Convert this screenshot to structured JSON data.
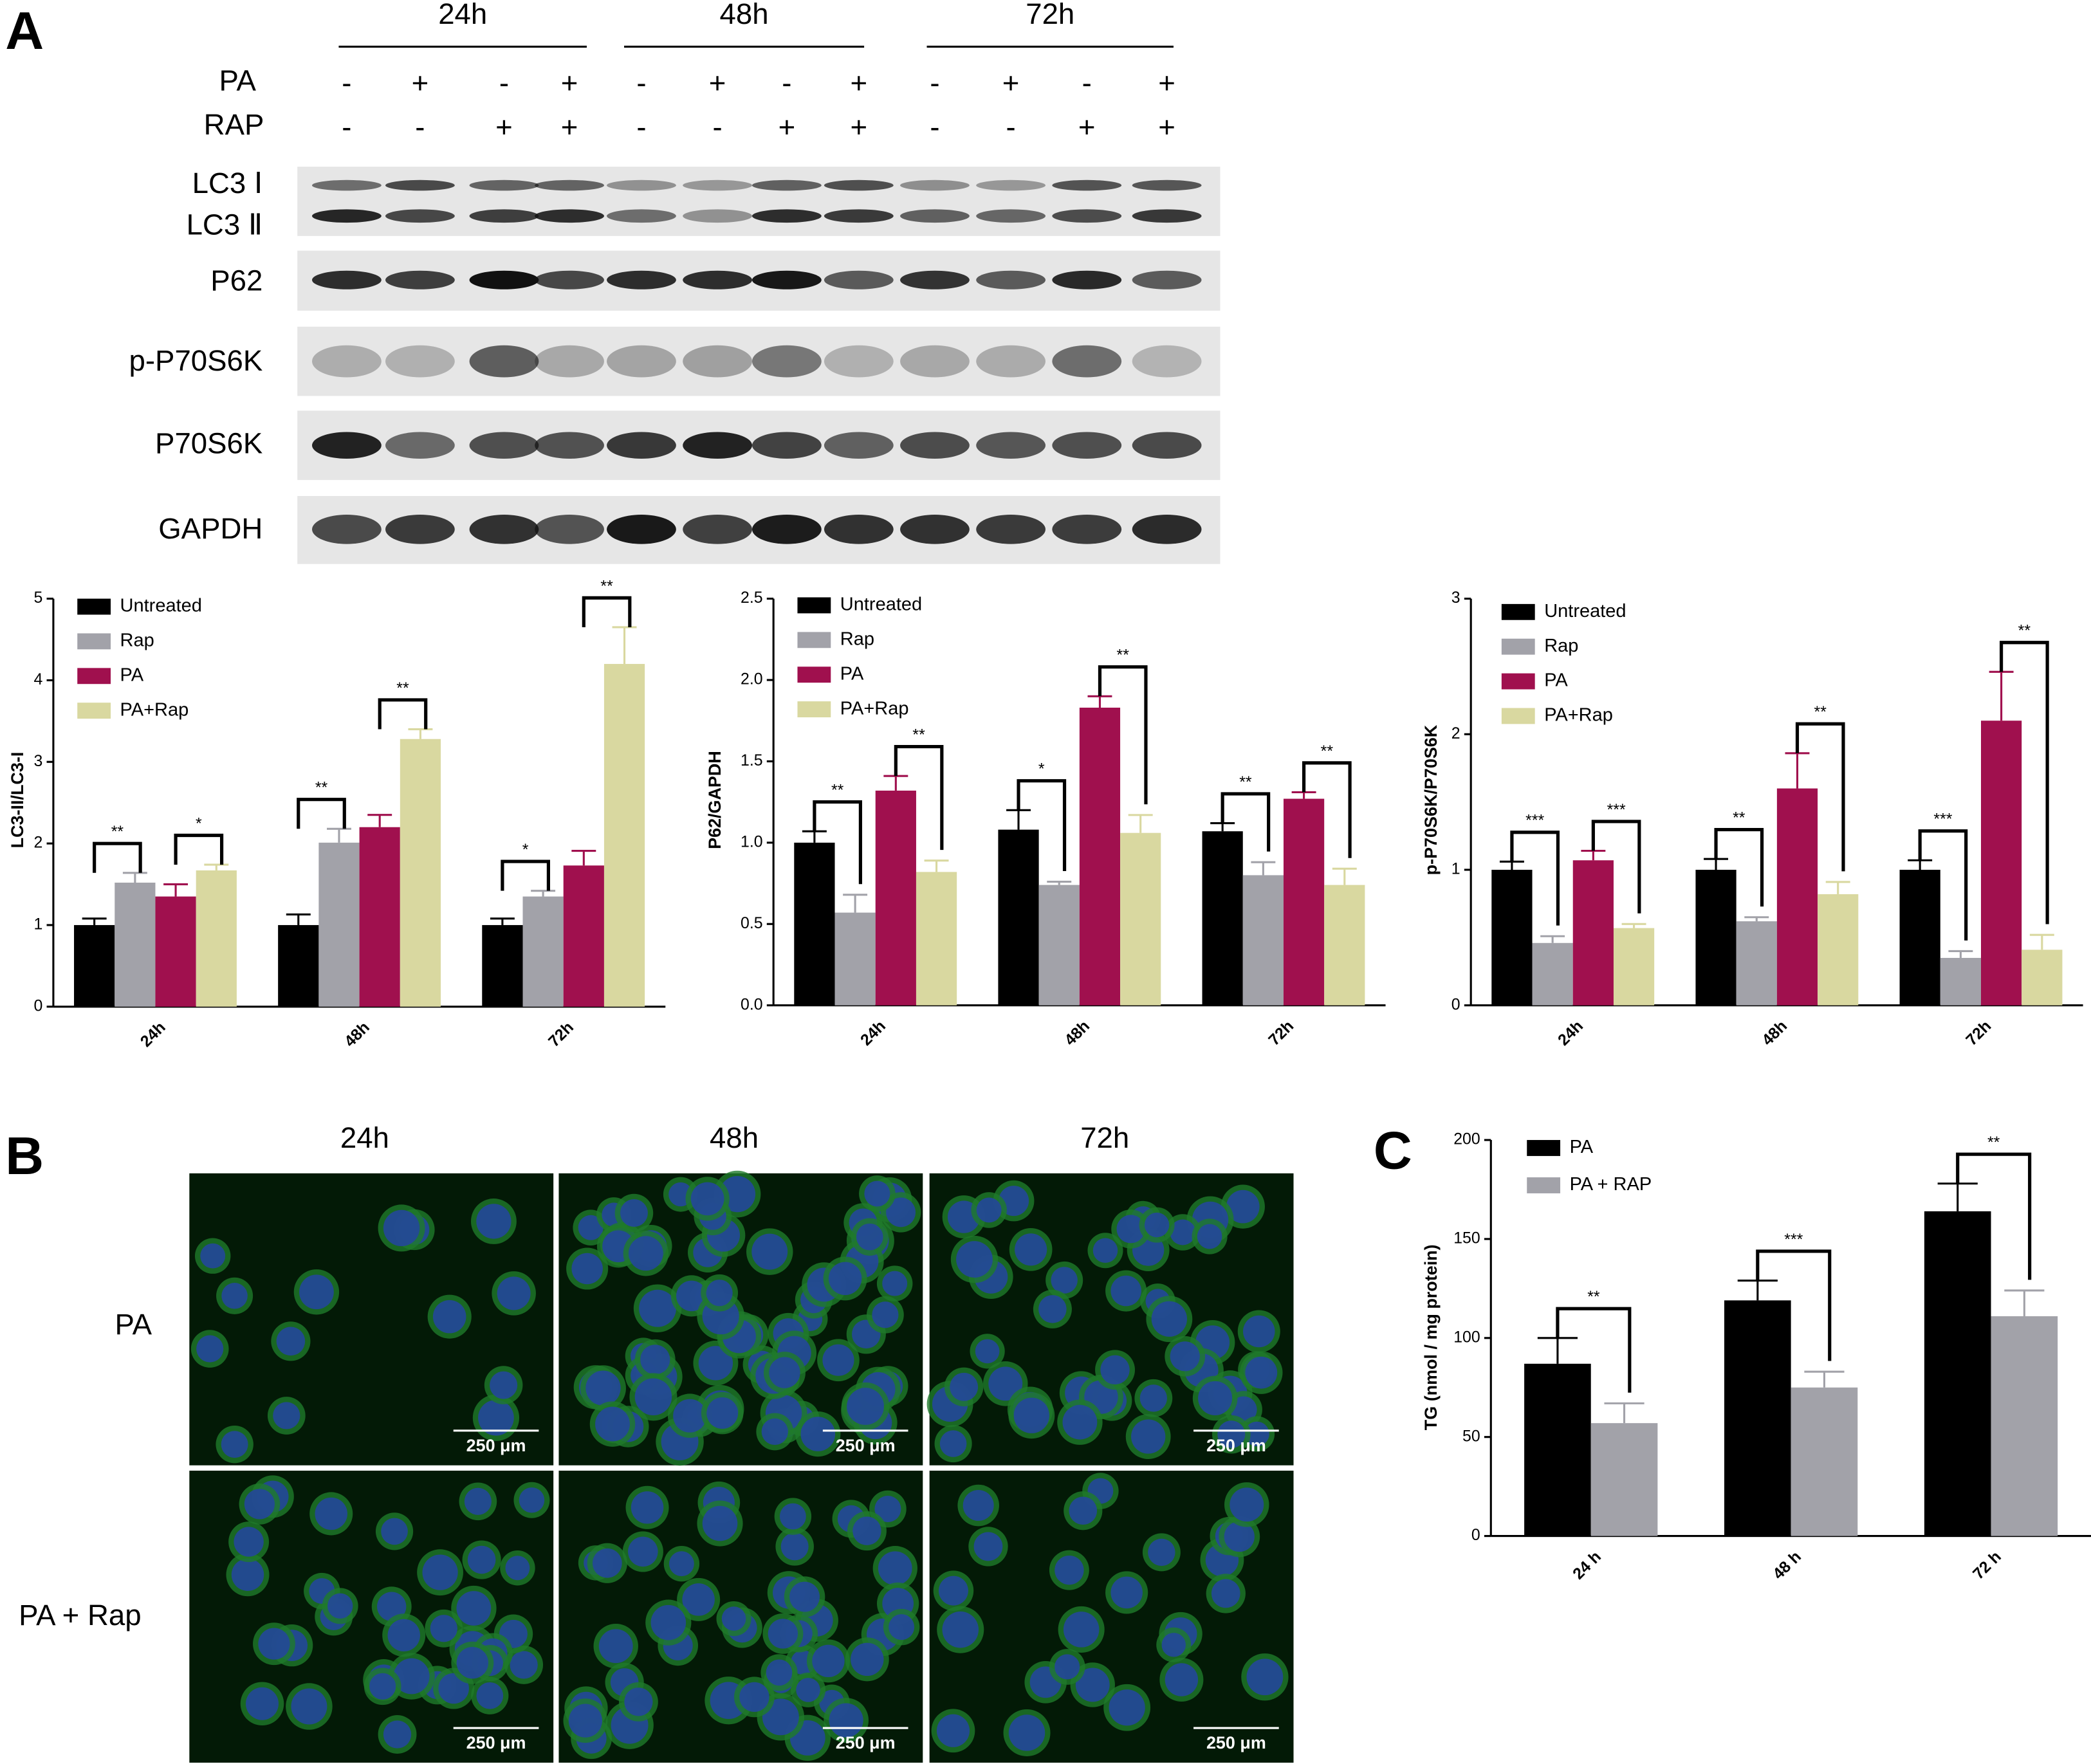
{
  "panel_labels": [
    "A",
    "B",
    "C"
  ],
  "blot": {
    "time_labels": [
      "24h",
      "48h",
      "72h"
    ],
    "treatment_rows": [
      {
        "label": "PA",
        "signs": [
          "-",
          "+",
          "-",
          "+",
          "-",
          "+",
          "-",
          "+",
          "-",
          "+",
          "-",
          "+"
        ]
      },
      {
        "label": "RAP",
        "signs": [
          "-",
          "-",
          "+",
          "+",
          "-",
          "-",
          "+",
          "+",
          "-",
          "-",
          "+",
          "+"
        ]
      }
    ],
    "protein_labels": [
      "LC3 Ⅰ",
      "LC3 Ⅱ",
      "P62",
      "p-P70S6K",
      "P70S6K",
      "GAPDH"
    ]
  },
  "micrographs": {
    "column_labels": [
      "24h",
      "48h",
      "72h"
    ],
    "row_labels": [
      "PA",
      "PA + Rap"
    ],
    "scale_bars": [
      [
        "250 μm",
        "250 μm",
        "250 μm"
      ],
      [
        "250 μm",
        "250 μm",
        "250 μm"
      ]
    ]
  },
  "chart_data": [
    {
      "type": "bar",
      "y_label": "LC3-II/LC3-I",
      "categories": [
        "24h",
        "48h",
        "72h"
      ],
      "series": [
        {
          "name": "Untreated",
          "color": "#000000",
          "values": [
            1,
            1,
            1
          ],
          "errors": [
            0.08,
            0.13,
            0.08
          ]
        },
        {
          "name": "Rap",
          "color": "#a2a2a9",
          "values": [
            1.52,
            2.01,
            1.35
          ],
          "errors": [
            0.12,
            0.17,
            0.07
          ]
        },
        {
          "name": "PA",
          "color": "#a0104e",
          "values": [
            1.35,
            2.2,
            1.73
          ],
          "errors": [
            0.15,
            0.15,
            0.18
          ]
        },
        {
          "name": "PA+Rap",
          "color": "#d9d8a0",
          "values": [
            1.67,
            3.28,
            4.2
          ],
          "errors": [
            0.07,
            0.12,
            0.45
          ]
        }
      ],
      "ylim": [
        0,
        5
      ],
      "yticks": [
        0,
        1,
        2,
        3,
        4,
        5
      ],
      "annotations": [
        [
          "**",
          "*"
        ],
        [
          "**",
          "**"
        ],
        [
          "*",
          "**"
        ]
      ]
    },
    {
      "type": "bar",
      "y_label": "P62/GAPDH",
      "categories": [
        "24h",
        "48h",
        "72h"
      ],
      "series": [
        {
          "name": "Untreated",
          "color": "#000000",
          "values": [
            1.0,
            1.08,
            1.07
          ],
          "errors": [
            0.07,
            0.12,
            0.05
          ]
        },
        {
          "name": "Rap",
          "color": "#a2a2a9",
          "values": [
            0.57,
            0.74,
            0.8
          ],
          "errors": [
            0.11,
            0.02,
            0.08
          ]
        },
        {
          "name": "PA",
          "color": "#a0104e",
          "values": [
            1.32,
            1.83,
            1.27
          ],
          "errors": [
            0.09,
            0.07,
            0.04
          ]
        },
        {
          "name": "PA+Rap",
          "color": "#d9d8a0",
          "values": [
            0.82,
            1.06,
            0.74
          ],
          "errors": [
            0.07,
            0.11,
            0.1
          ]
        }
      ],
      "ylim": [
        0,
        2.5
      ],
      "yticks": [
        {
          "value": 0,
          "label": "0.0"
        },
        0.5,
        {
          "value": 1,
          "label": "1.0"
        },
        1.5,
        {
          "value": 2,
          "label": "2.0"
        },
        2.5
      ],
      "annotations": [
        [
          "**",
          "**"
        ],
        [
          "*",
          "**"
        ],
        [
          "**",
          "**"
        ]
      ]
    },
    {
      "type": "bar",
      "y_label": "p-P70S6K/P70S6K",
      "categories": [
        "24h",
        "48h",
        "72h"
      ],
      "series": [
        {
          "name": "Untreated",
          "color": "#000000",
          "values": [
            1,
            1,
            1
          ],
          "errors": [
            0.06,
            0.08,
            0.07
          ]
        },
        {
          "name": "Rap",
          "color": "#a2a2a9",
          "values": [
            0.46,
            0.62,
            0.35
          ],
          "errors": [
            0.05,
            0.03,
            0.05
          ]
        },
        {
          "name": "PA",
          "color": "#a0104e",
          "values": [
            1.07,
            1.6,
            2.1
          ],
          "errors": [
            0.07,
            0.26,
            0.36
          ]
        },
        {
          "name": "PA+Rap",
          "color": "#d9d8a0",
          "values": [
            0.57,
            0.82,
            0.41
          ],
          "errors": [
            0.03,
            0.09,
            0.11
          ]
        }
      ],
      "ylim": [
        0,
        3
      ],
      "yticks": [
        0,
        1,
        2,
        3
      ],
      "annotations": [
        [
          "***",
          "***"
        ],
        [
          "**",
          "**"
        ],
        [
          "***",
          "**"
        ]
      ]
    },
    {
      "type": "bar",
      "y_label": "TG (nmol / mg protein)",
      "categories": [
        "24 h",
        "48 h",
        "72 h"
      ],
      "series": [
        {
          "name": "PA",
          "color": "#000000",
          "values": [
            87,
            119,
            164
          ],
          "errors": [
            13,
            10,
            14
          ]
        },
        {
          "name": "PA + RAP",
          "color": "#a2a2a9",
          "values": [
            57,
            75,
            111
          ],
          "errors": [
            10,
            8,
            13
          ]
        }
      ],
      "ylim": [
        0,
        200
      ],
      "yticks": [
        0,
        50,
        100,
        150,
        200
      ],
      "annotations": [
        [
          "**"
        ],
        [
          "***"
        ],
        [
          "**"
        ]
      ]
    }
  ]
}
